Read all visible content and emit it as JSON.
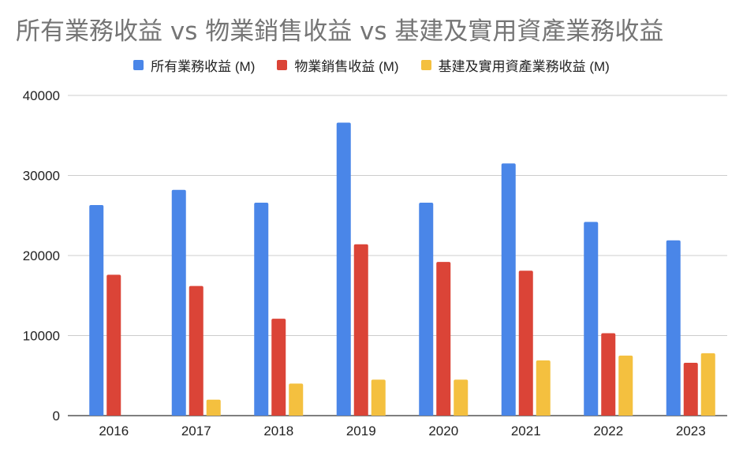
{
  "chart_data": {
    "type": "bar",
    "title": "所有業務收益 vs 物業銷售收益 vs 基建及實用資產業務收益",
    "xlabel": "",
    "ylabel": "",
    "categories": [
      "2016",
      "2017",
      "2018",
      "2019",
      "2020",
      "2021",
      "2022",
      "2023"
    ],
    "ylim": [
      0,
      40000
    ],
    "yticks": [
      "0",
      "10000",
      "20000",
      "30000",
      "40000"
    ],
    "grid": true,
    "legend_position": "top",
    "series": [
      {
        "name": "所有業務收益 (M)",
        "color": "#4a86e8",
        "values": [
          26300,
          28200,
          26600,
          36600,
          26600,
          31500,
          24200,
          21900
        ]
      },
      {
        "name": "物業銷售收益 (M)",
        "color": "#db4437",
        "values": [
          17600,
          16200,
          12100,
          21400,
          19200,
          18100,
          10300,
          6600
        ]
      },
      {
        "name": "基建及實用資產業務收益 (M)",
        "color": "#f4c03f",
        "values": [
          0,
          2000,
          4000,
          4500,
          4500,
          6900,
          7500,
          7800
        ]
      }
    ]
  }
}
